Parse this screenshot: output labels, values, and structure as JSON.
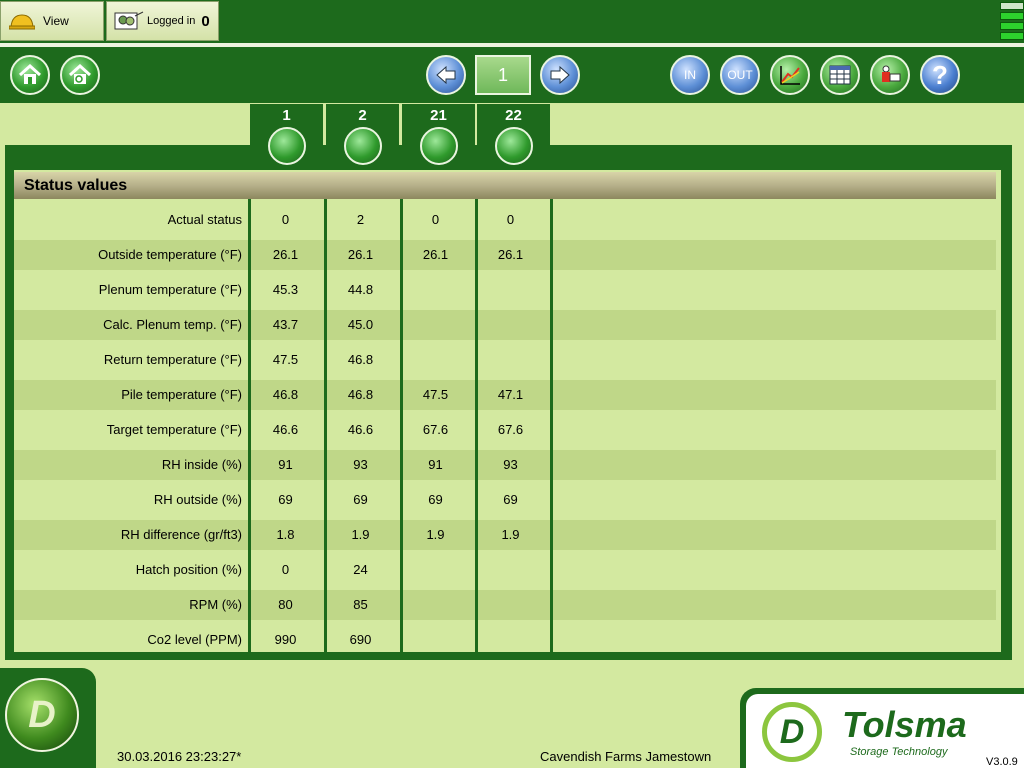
{
  "header": {
    "view_label": "View",
    "logged_in_label": "Logged in",
    "logged_in_count": "0"
  },
  "toolbar": {
    "page_number": "1",
    "in_label": "IN",
    "out_label": "OUT",
    "help_label": "?"
  },
  "columns": [
    "1",
    "2",
    "21",
    "22"
  ],
  "status_title": "Status values",
  "rows": [
    {
      "label": "Actual status",
      "values": [
        "0",
        "2",
        "0",
        "0"
      ]
    },
    {
      "label": "Outside temperature (°F)",
      "values": [
        "26.1",
        "26.1",
        "26.1",
        "26.1"
      ]
    },
    {
      "label": "Plenum temperature (°F)",
      "values": [
        "45.3",
        "44.8",
        "",
        ""
      ]
    },
    {
      "label": "Calc. Plenum temp. (°F)",
      "values": [
        "43.7",
        "45.0",
        "",
        ""
      ]
    },
    {
      "label": "Return temperature (°F)",
      "values": [
        "47.5",
        "46.8",
        "",
        ""
      ]
    },
    {
      "label": "Pile temperature (°F)",
      "values": [
        "46.8",
        "46.8",
        "47.5",
        "47.1"
      ]
    },
    {
      "label": "Target temperature (°F)",
      "values": [
        "46.6",
        "46.6",
        "67.6",
        "67.6"
      ]
    },
    {
      "label": "RH inside (%)",
      "values": [
        "91",
        "93",
        "91",
        "93"
      ]
    },
    {
      "label": "RH outside (%)",
      "values": [
        "69",
        "69",
        "69",
        "69"
      ]
    },
    {
      "label": "RH difference (gr/ft3)",
      "values": [
        "1.8",
        "1.9",
        "1.9",
        "1.9"
      ]
    },
    {
      "label": "Hatch position (%)",
      "values": [
        "0",
        "24",
        "",
        ""
      ]
    },
    {
      "label": "RPM (%)",
      "values": [
        "80",
        "85",
        "",
        ""
      ]
    },
    {
      "label": "Co2 level (PPM)",
      "values": [
        "990",
        "690",
        "",
        ""
      ]
    }
  ],
  "footer": {
    "datetime": "30.03.2016 23:23:27*",
    "site": "Cavendish Farms Jamestown",
    "brand": "Tolsma",
    "brand_sub": "Storage Technology",
    "version": "V3.0.9",
    "logo_letter": "D"
  }
}
